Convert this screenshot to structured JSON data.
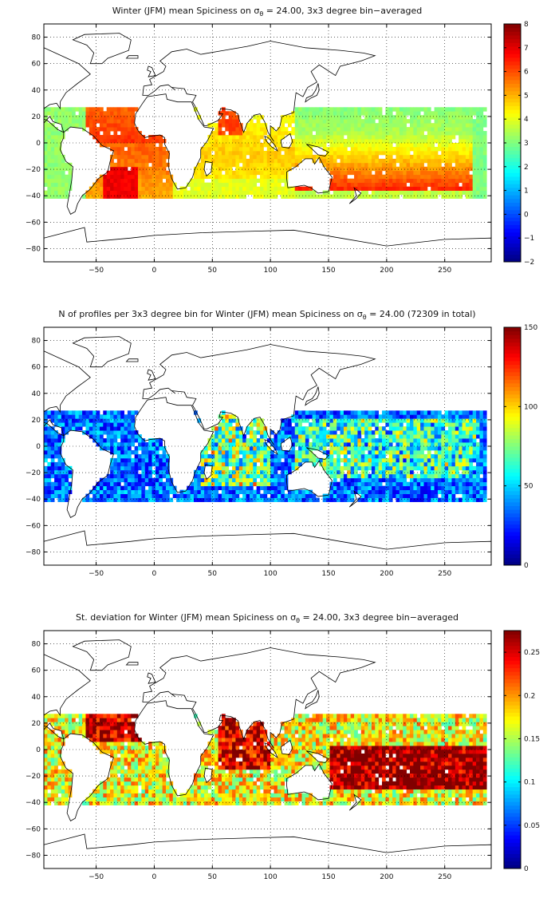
{
  "colors": {
    "background": "#ffffff",
    "axis": "#000000",
    "grid": "#000000"
  },
  "chart_data": [
    {
      "type": "heatmap",
      "title_parts": [
        "Winter (JFM) mean Spiciness on σ",
        "θ",
        " = 24.00, 3x3 degree bin−averaged"
      ],
      "xlim": [
        -95,
        290
      ],
      "ylim": [
        -90,
        90
      ],
      "x_ticks": [
        -50,
        0,
        50,
        100,
        150,
        200,
        250
      ],
      "y_ticks": [
        -80,
        -60,
        -40,
        -20,
        0,
        20,
        40,
        60,
        80
      ],
      "grid": true,
      "colorbar": {
        "min": -2,
        "max": 8,
        "ticks": [
          -2,
          -1,
          0,
          1,
          2,
          3,
          4,
          5,
          6,
          7,
          8
        ],
        "colormap": "jet"
      },
      "field": "spice"
    },
    {
      "type": "heatmap",
      "title_parts": [
        "N of profiles per 3x3 degree bin for Winter (JFM) mean Spiciness on σ",
        "θ",
        " = 24.00 (72309 in total)"
      ],
      "xlim": [
        -95,
        290
      ],
      "ylim": [
        -90,
        90
      ],
      "x_ticks": [
        -50,
        0,
        50,
        100,
        150,
        200,
        250
      ],
      "y_ticks": [
        -80,
        -60,
        -40,
        -20,
        0,
        20,
        40,
        60,
        80
      ],
      "grid": true,
      "colorbar": {
        "min": 0,
        "max": 150,
        "ticks": [
          0,
          50,
          100,
          150
        ],
        "colormap": "jet"
      },
      "field": "count"
    },
    {
      "type": "heatmap",
      "title_parts": [
        "St. deviation for Winter (JFM) mean Spiciness on σ",
        "θ",
        " = 24.00, 3x3 degree bin−averaged"
      ],
      "xlim": [
        -95,
        290
      ],
      "ylim": [
        -90,
        90
      ],
      "x_ticks": [
        -50,
        0,
        50,
        100,
        150,
        200,
        250
      ],
      "y_ticks": [
        -80,
        -60,
        -40,
        -20,
        0,
        20,
        40,
        60,
        80
      ],
      "grid": true,
      "colorbar": {
        "min": 0,
        "max": 0.275,
        "ticks": [
          0,
          0.05,
          0.1,
          0.15,
          0.2,
          0.25
        ],
        "colormap": "jet"
      },
      "field": "std"
    }
  ]
}
